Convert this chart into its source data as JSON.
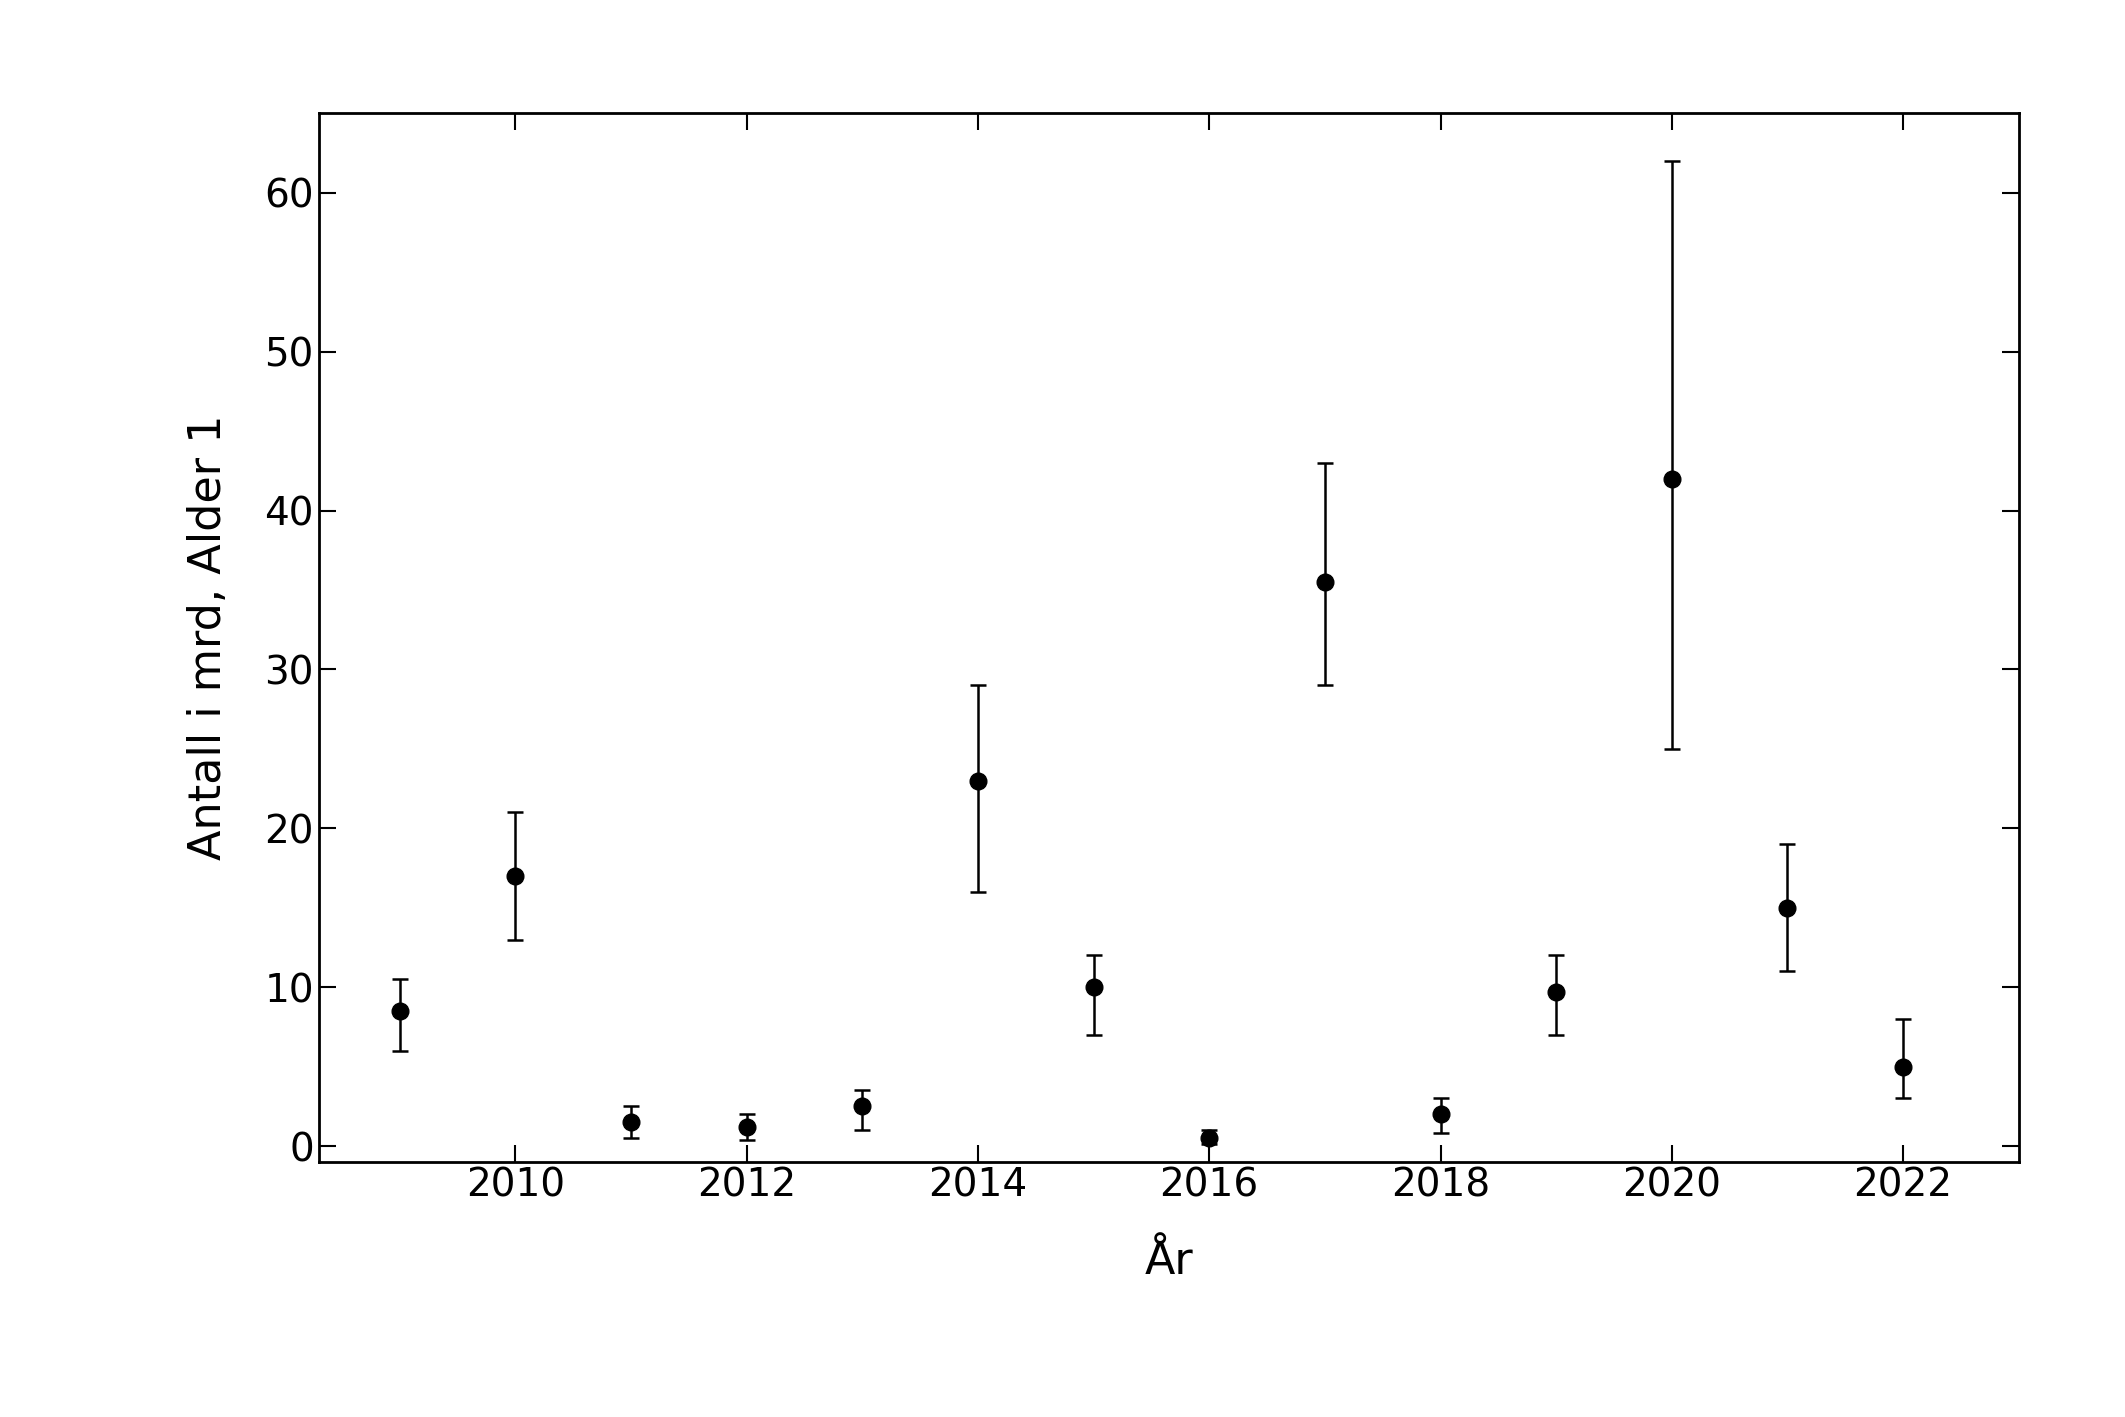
{
  "years": [
    2009,
    2010,
    2011,
    2012,
    2013,
    2014,
    2015,
    2016,
    2017,
    2018,
    2019,
    2020,
    2021,
    2022
  ],
  "values": [
    8.5,
    17.0,
    1.5,
    1.2,
    2.5,
    23.0,
    10.0,
    0.5,
    35.5,
    2.0,
    9.7,
    42.0,
    15.0,
    5.0
  ],
  "ci_lower": [
    6.0,
    13.0,
    0.5,
    0.4,
    1.0,
    16.0,
    7.0,
    0.1,
    29.0,
    0.8,
    7.0,
    25.0,
    11.0,
    3.0
  ],
  "ci_upper": [
    10.5,
    21.0,
    2.5,
    2.0,
    3.5,
    29.0,
    12.0,
    1.0,
    43.0,
    3.0,
    12.0,
    62.0,
    19.0,
    8.0
  ],
  "xlabel": "År",
  "ylabel": "Antall i mrd, Alder 1",
  "xlim": [
    2008.3,
    2023.0
  ],
  "ylim": [
    -1,
    65
  ],
  "yticks": [
    0,
    10,
    20,
    30,
    40,
    50,
    60
  ],
  "xticks": [
    2010,
    2012,
    2014,
    2016,
    2018,
    2020,
    2022
  ],
  "marker_color": "#000000",
  "marker_size": 12,
  "capsize": 6,
  "elinewidth": 1.8,
  "capthick": 1.8,
  "background_color": "#ffffff",
  "tick_fontsize": 28,
  "label_fontsize": 32,
  "spine_linewidth": 2.0
}
